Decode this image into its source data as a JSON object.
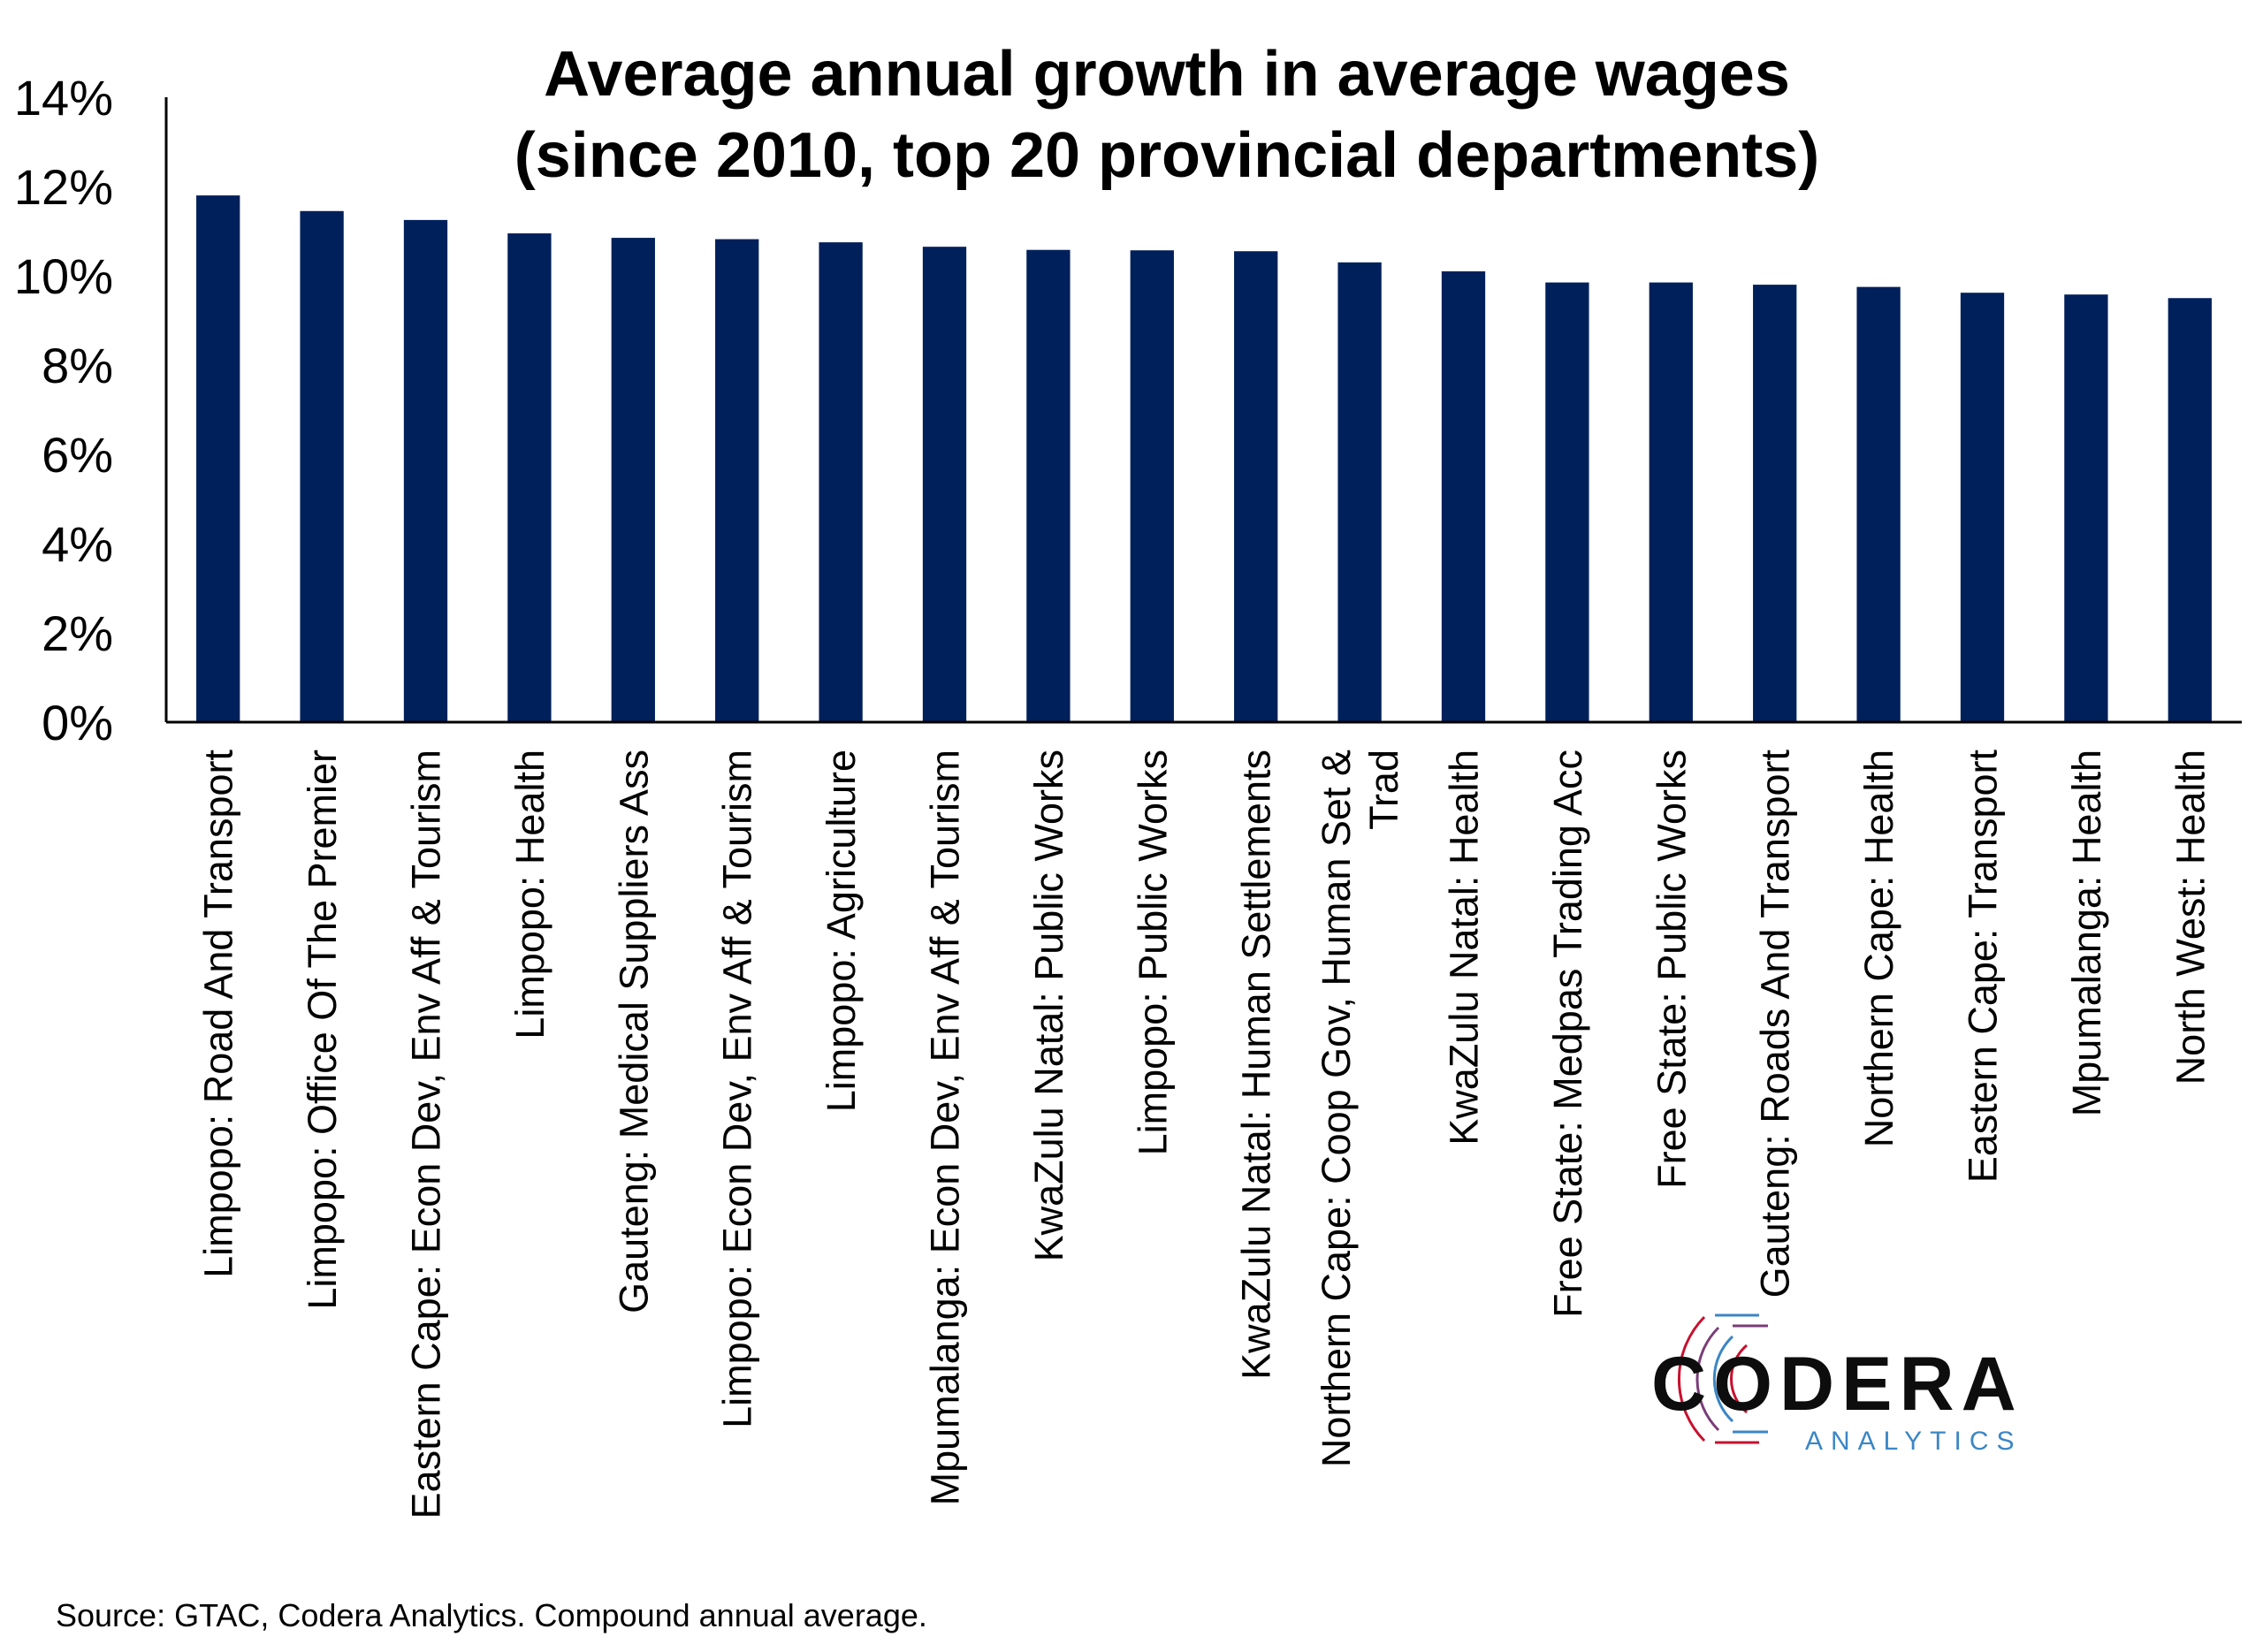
{
  "chart_data": {
    "type": "bar",
    "title_lines": [
      "Average annual growth in average wages",
      "(since 2010, top 20 provincial departments)"
    ],
    "categories": [
      [
        "Limpopo: Road And Transport"
      ],
      [
        "Limpopo: Office Of The Premier"
      ],
      [
        "Eastern Cape: Econ Dev, Env Aff & Tourism"
      ],
      [
        "Limpopo: Health"
      ],
      [
        "Gauteng: Medical Suppliers Ass"
      ],
      [
        "Limpopo: Econ Dev, Env Aff & Tourism"
      ],
      [
        "Limpopo: Agriculture"
      ],
      [
        "Mpumalanga: Econ Dev, Env Aff & Tourism"
      ],
      [
        "KwaZulu Natal: Public Works"
      ],
      [
        "Limpopo: Public Works"
      ],
      [
        "KwaZulu Natal: Human Settlements"
      ],
      [
        "Northern Cape: Coop Gov, Human Set &",
        "Trad"
      ],
      [
        "KwaZulu Natal: Health"
      ],
      [
        "Free State: Medpas Trading Acc"
      ],
      [
        "Free State: Public Works"
      ],
      [
        "Gauteng: Roads And Transport"
      ],
      [
        "Northern Cape: Health"
      ],
      [
        "Eastern Cape: Transport"
      ],
      [
        "Mpumalanga: Health"
      ],
      [
        "North West: Health"
      ]
    ],
    "values": [
      11.8,
      11.45,
      11.25,
      10.95,
      10.85,
      10.82,
      10.75,
      10.65,
      10.58,
      10.57,
      10.55,
      10.3,
      10.1,
      9.85,
      9.85,
      9.8,
      9.75,
      9.62,
      9.58,
      9.5
    ],
    "ylim": [
      0,
      14
    ],
    "y_ticks": [
      "0%",
      "2%",
      "4%",
      "6%",
      "8%",
      "10%",
      "12%",
      "14%"
    ],
    "y_tick_values": [
      0,
      2,
      4,
      6,
      8,
      10,
      12,
      14
    ],
    "grid": false,
    "legend": "none",
    "bar_color": "#00205b"
  },
  "source_note": "Source: GTAC, Codera Analytics. Compound annual average.",
  "logo": {
    "name": "CODERA",
    "sub": "ANALYTICS",
    "sub_color": "#3b86c5",
    "accent_red": "#c8102e",
    "accent_blue": "#3b86c5"
  }
}
